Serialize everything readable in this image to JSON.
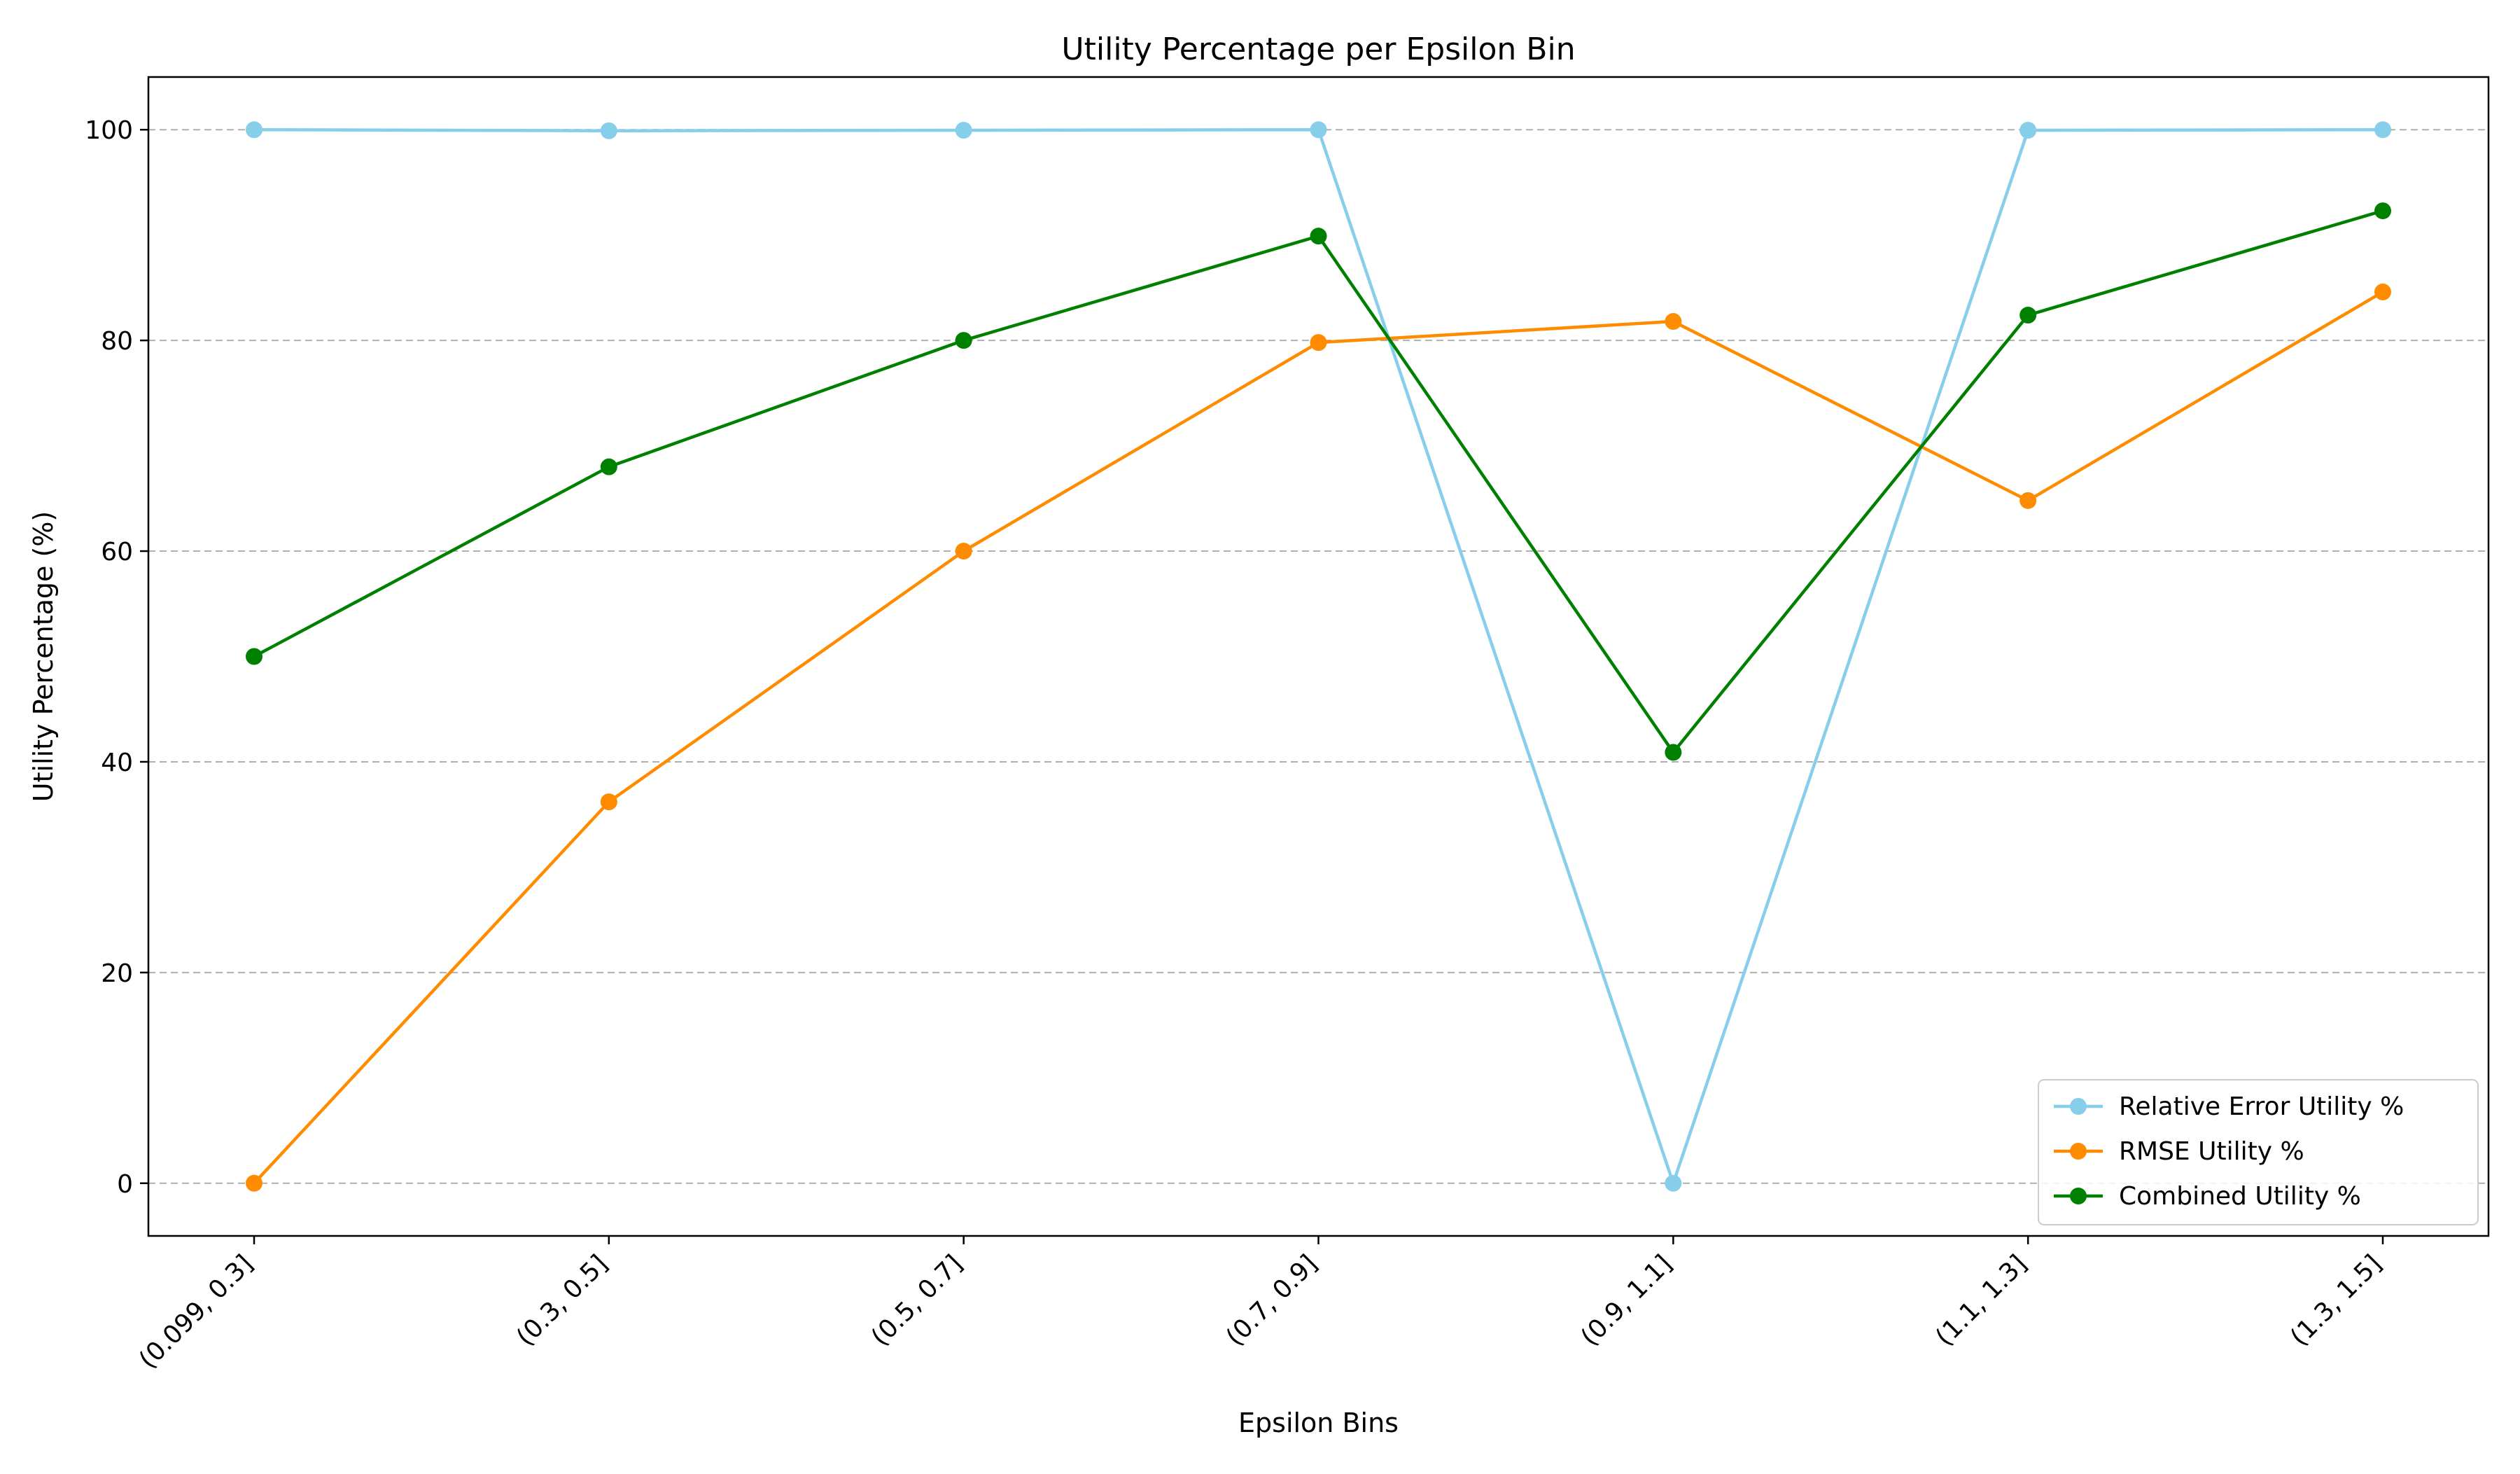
{
  "chart_data": {
    "type": "line",
    "title": "Utility Percentage per Epsilon Bin",
    "xlabel": "Epsilon Bins",
    "ylabel": "Utility Percentage (%)",
    "categories": [
      "(0.099, 0.3]",
      "(0.3, 0.5]",
      "(0.5, 0.7]",
      "(0.7, 0.9]",
      "(0.9, 1.1]",
      "(1.1, 1.3]",
      "(1.3, 1.5]"
    ],
    "ylim": [
      -5,
      105
    ],
    "yticks": [
      0,
      20,
      40,
      60,
      80,
      100
    ],
    "grid": "horizontal dashed",
    "legend_position": "lower-right",
    "series": [
      {
        "name": "Relative Error Utility %",
        "color": "#87CEEB",
        "values": [
          100.0,
          99.9,
          99.95,
          100.0,
          0.0,
          99.95,
          100.0
        ]
      },
      {
        "name": "RMSE Utility %",
        "color": "#FF8C00",
        "values": [
          0.0,
          36.2,
          60.0,
          79.8,
          81.8,
          64.8,
          84.6
        ]
      },
      {
        "name": "Combined Utility %",
        "color": "#008000",
        "values": [
          50.0,
          68.0,
          80.0,
          89.9,
          40.9,
          82.4,
          92.3
        ]
      }
    ]
  }
}
